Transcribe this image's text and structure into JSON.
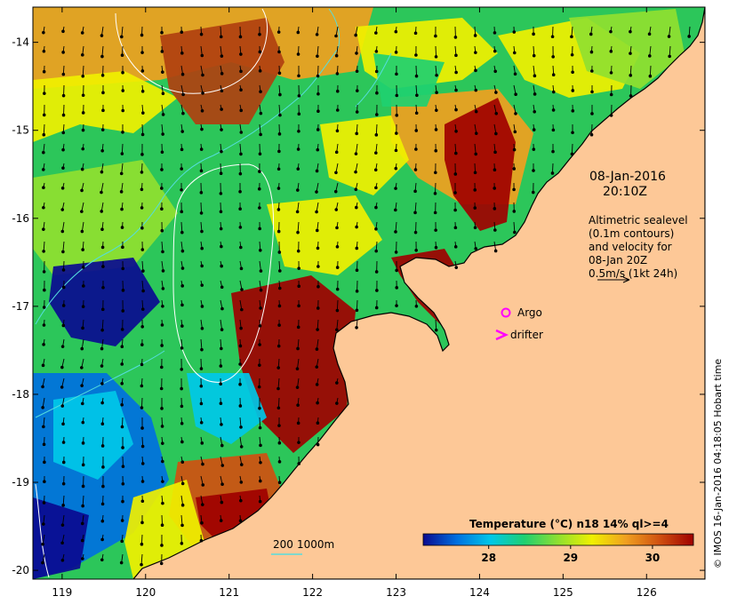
{
  "map": {
    "lon_ticks": [
      "119",
      "120",
      "121",
      "122",
      "123",
      "124",
      "125",
      "126"
    ],
    "lat_ticks": [
      "-14",
      "-15",
      "-16",
      "-17",
      "-18",
      "-19",
      "-20"
    ],
    "lon_range": [
      118.65,
      126.7
    ],
    "lat_range": [
      -20.1,
      -13.6
    ]
  },
  "annotation": {
    "date": "08-Jan-2016",
    "time": "20:10Z",
    "alt_line1": "Altimetric sealevel",
    "alt_line2": "(0.1m contours)",
    "alt_line3": "and velocity for",
    "alt_line4": "08-Jan 20Z",
    "alt_line5": "0.5m/s (1kt 24h)"
  },
  "legend": {
    "argo_label": "Argo",
    "drifter_label": "drifter",
    "argo_color": "#ff00ff",
    "drifter_color": "#ff00ff"
  },
  "depth_legend": {
    "label_200": "200",
    "label_1000": "1000m",
    "contour_color": "#55dddd"
  },
  "colorbar": {
    "title": "Temperature (°C) n18 14% ql>=4",
    "ticks": [
      "28",
      "29",
      "30"
    ],
    "range": [
      27.2,
      30.5
    ],
    "colors": [
      "#0a0a90",
      "#0070e0",
      "#00c8e8",
      "#20d070",
      "#90e030",
      "#f0f000",
      "#f0a020",
      "#d05010",
      "#a00000"
    ]
  },
  "land_color": "#fdc897",
  "credit": "© IMOS 16-Jan-2016 04:18:05 Hobart time"
}
